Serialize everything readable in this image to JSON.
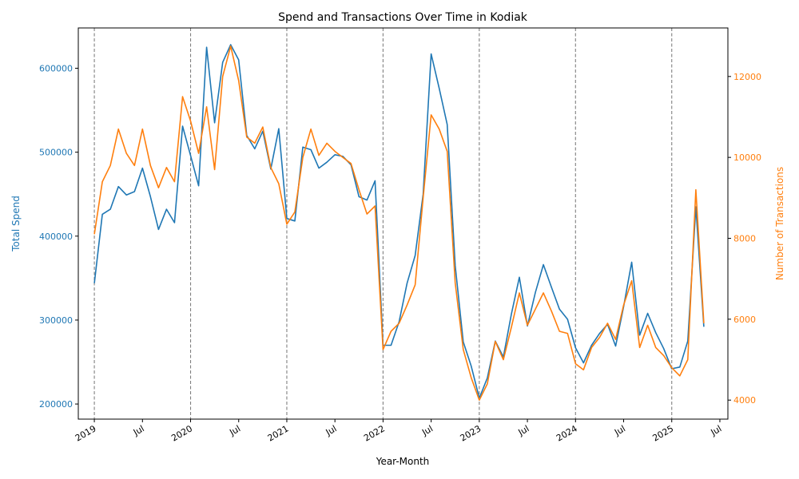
{
  "chart_data": {
    "type": "line",
    "title": "Spend and Transactions Over Time in Kodiak",
    "xlabel": "Year-Month",
    "ylabel_left": "Total Spend",
    "ylabel_right": "Number of Transactions",
    "x_start": "2019-01",
    "x_range": [
      "2018-11",
      "2025-08"
    ],
    "ylim_left": [
      182000,
      648000
    ],
    "ylim_right": [
      3530,
      13200
    ],
    "grid": false,
    "legend": "none",
    "colors": {
      "spend": "#1f77b4",
      "transactions": "#ff7f0e",
      "year_marker": "#808080"
    },
    "x_ticks": [
      {
        "date": "2019-01",
        "label": "2019"
      },
      {
        "date": "2019-07",
        "label": "Jul"
      },
      {
        "date": "2020-01",
        "label": "2020"
      },
      {
        "date": "2020-07",
        "label": "Jul"
      },
      {
        "date": "2021-01",
        "label": "2021"
      },
      {
        "date": "2021-07",
        "label": "Jul"
      },
      {
        "date": "2022-01",
        "label": "2022"
      },
      {
        "date": "2022-07",
        "label": "Jul"
      },
      {
        "date": "2023-01",
        "label": "2023"
      },
      {
        "date": "2023-07",
        "label": "Jul"
      },
      {
        "date": "2024-01",
        "label": "2024"
      },
      {
        "date": "2024-07",
        "label": "Jul"
      },
      {
        "date": "2025-01",
        "label": "2025"
      },
      {
        "date": "2025-07",
        "label": "Jul"
      }
    ],
    "y_ticks_left": [
      "200000",
      "300000",
      "400000",
      "500000",
      "600000"
    ],
    "y_ticks_right": [
      "4000",
      "6000",
      "8000",
      "10000",
      "12000"
    ],
    "year_markers": [
      "2019-01",
      "2020-01",
      "2021-01",
      "2022-01",
      "2023-01",
      "2024-01",
      "2025-01"
    ],
    "series": [
      {
        "name": "Total Spend",
        "axis": "left",
        "values": [
          344000,
          426000,
          432000,
          459000,
          449000,
          453000,
          481000,
          447000,
          408000,
          432000,
          416000,
          531000,
          496000,
          460000,
          625000,
          535000,
          607000,
          628000,
          610000,
          520000,
          504000,
          525000,
          480000,
          528000,
          421000,
          418000,
          506000,
          503000,
          481000,
          488000,
          497000,
          495000,
          485000,
          447000,
          443000,
          466000,
          270000,
          270000,
          298000,
          344000,
          377000,
          450000,
          617000,
          576000,
          533000,
          365000,
          274000,
          245000,
          207000,
          231000,
          275000,
          256000,
          307000,
          351000,
          293000,
          333000,
          366000,
          339000,
          313000,
          301000,
          267000,
          249000,
          270000,
          284000,
          295000,
          269000,
          316000,
          369000,
          282000,
          308000,
          285000,
          266000,
          242000,
          244000,
          275000,
          435000,
          292000
        ]
      },
      {
        "name": "Number of Transactions",
        "axis": "right",
        "values": [
          8100,
          9400,
          9800,
          10700,
          10100,
          9800,
          10700,
          9800,
          9250,
          9750,
          9400,
          11500,
          10900,
          10100,
          11250,
          9700,
          12000,
          12750,
          11900,
          10500,
          10350,
          10750,
          9750,
          9350,
          8350,
          8650,
          10000,
          10700,
          10050,
          10350,
          10150,
          10000,
          9850,
          9200,
          8600,
          8800,
          5250,
          5700,
          5900,
          6350,
          6850,
          9000,
          11050,
          10700,
          10150,
          6900,
          5250,
          4550,
          4000,
          4400,
          5450,
          5000,
          5800,
          6650,
          5850,
          6250,
          6650,
          6200,
          5700,
          5650,
          4900,
          4750,
          5300,
          5550,
          5900,
          5500,
          6350,
          6950,
          5300,
          5850,
          5300,
          5100,
          4800,
          4600,
          5000,
          9200,
          5900
        ]
      }
    ]
  }
}
